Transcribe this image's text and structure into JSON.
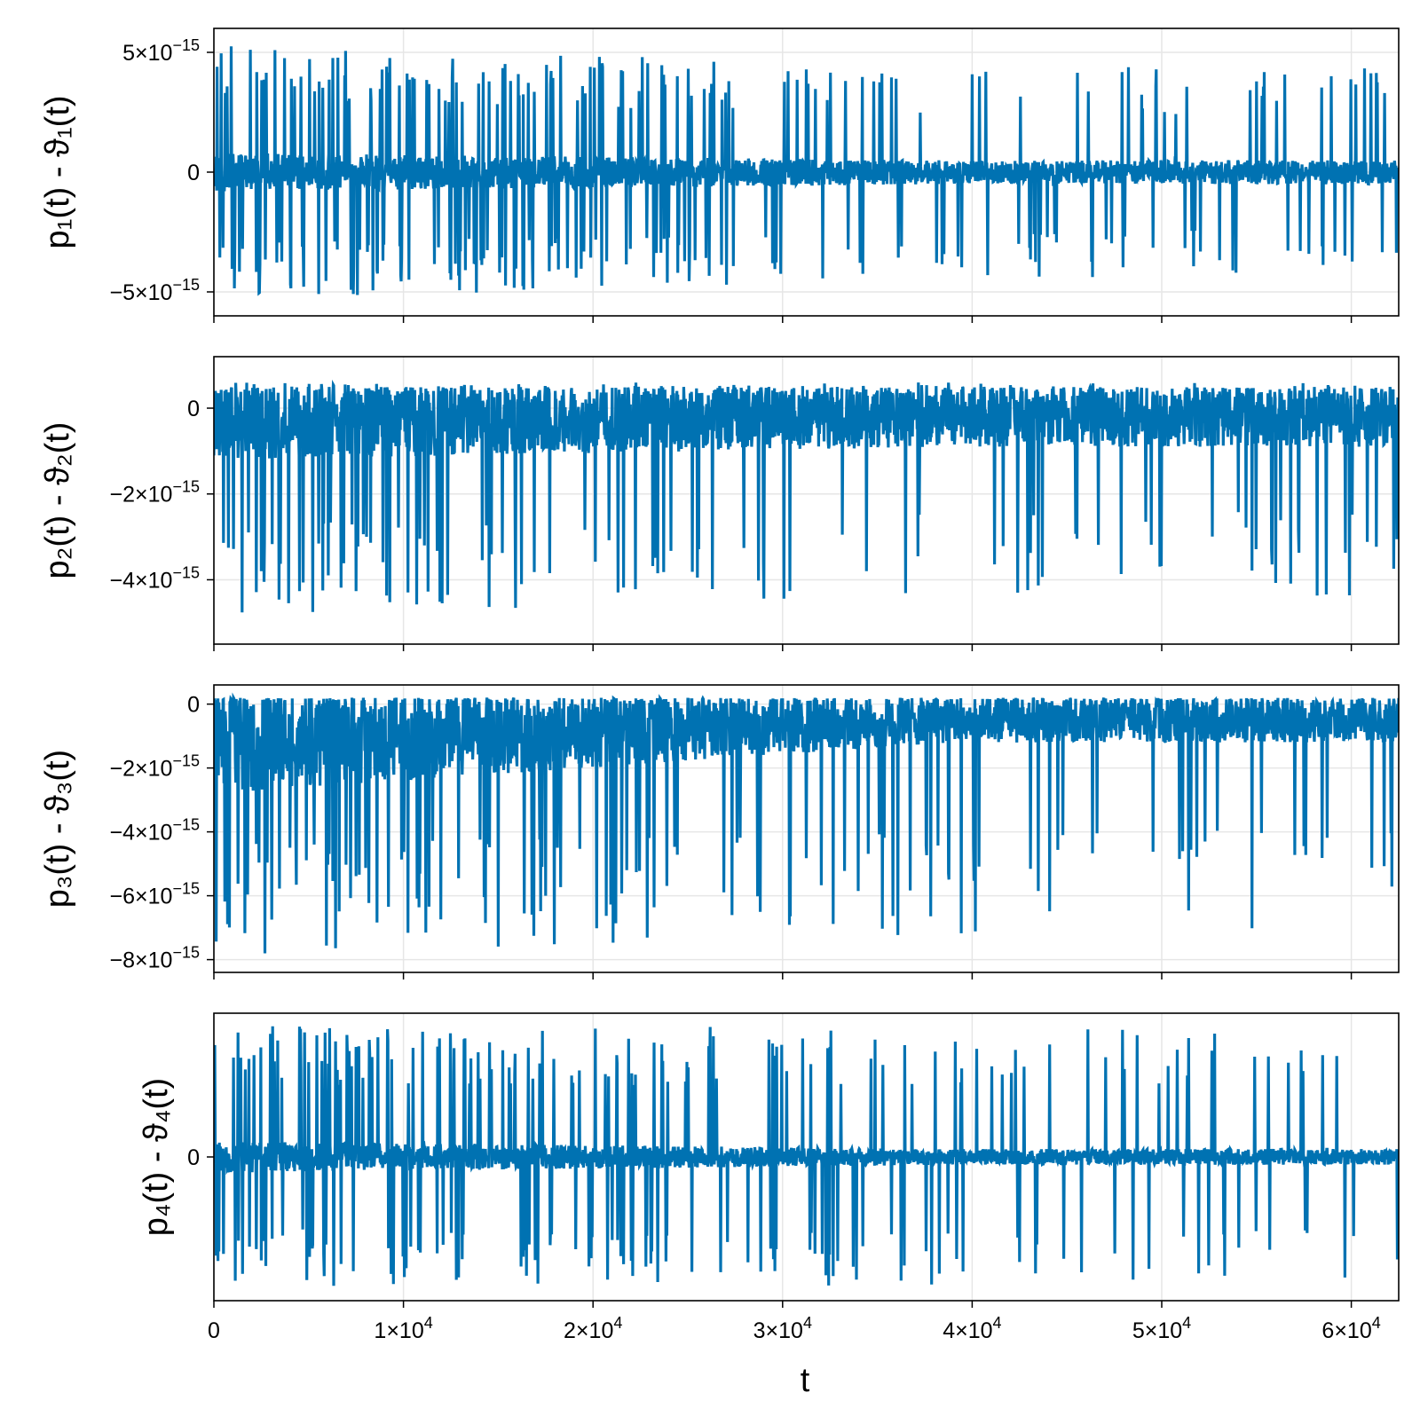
{
  "figure": {
    "line_color": "#0072b2",
    "grid_color": "#e6e6e6",
    "x_axis_label": "t",
    "shared_x_ticks": [
      "0",
      "1×10",
      "2×10",
      "3×10",
      "4×10",
      "5×10",
      "6×10"
    ],
    "x_tick_exponent": "4"
  },
  "chart_data": [
    {
      "type": "line",
      "ylabel": "p₁(t) - ϑ₁(t)",
      "xlim": [
        0,
        62500
      ],
      "ylim": [
        -6e-15,
        6e-15
      ],
      "grid": true,
      "y_ticks": [
        {
          "value": 5e-15,
          "mant": "5×10",
          "exp": "−15"
        },
        {
          "value": 0,
          "mant": "0",
          "exp": ""
        },
        {
          "value": -5e-15,
          "mant": "−5×10",
          "exp": "−15"
        }
      ],
      "envelope": {
        "base_lo": -8e-16,
        "base_hi": 8e-16,
        "late_lo": -5e-16,
        "late_hi": 5e-16,
        "spike_up": 5.4e-15,
        "spike_down": -5.4e-15,
        "late_spike_up": 4.4e-15,
        "late_spike_down": -4.4e-15
      },
      "series": [
        {
          "values_summary": "oscillating error around 0, spikes up to ±5.4×10⁻¹⁵"
        }
      ]
    },
    {
      "type": "line",
      "ylabel": "p₂(t) - ϑ₂(t)",
      "xlim": [
        0,
        62500
      ],
      "ylim": [
        -5.5e-15,
        1.2e-15
      ],
      "grid": true,
      "y_ticks": [
        {
          "value": 0,
          "mant": "0",
          "exp": ""
        },
        {
          "value": -2e-15,
          "mant": "−2×10",
          "exp": "−15"
        },
        {
          "value": -4e-15,
          "mant": "−4×10",
          "exp": "−15"
        }
      ],
      "envelope": {
        "base_lo": -1.2e-15,
        "base_hi": 5e-16,
        "late_lo": -9e-16,
        "late_hi": 5e-16,
        "spike_up": 6e-16,
        "spike_down": -4.9e-15,
        "late_spike_up": 6e-16,
        "late_spike_down": -4.4e-15
      },
      "series": [
        {
          "values_summary": "dense band near 0 with negative spikes to about −5.1×10⁻¹⁵"
        }
      ]
    },
    {
      "type": "line",
      "ylabel": "p₃(t) - ϑ₃(t)",
      "xlim": [
        0,
        62500
      ],
      "ylim": [
        -8.4e-15,
        6e-16
      ],
      "grid": true,
      "y_ticks": [
        {
          "value": 0,
          "mant": "0",
          "exp": ""
        },
        {
          "value": -2e-15,
          "mant": "−2×10",
          "exp": "−15"
        },
        {
          "value": -4e-15,
          "mant": "−4×10",
          "exp": "−15"
        },
        {
          "value": -6e-15,
          "mant": "−6×10",
          "exp": "−15"
        },
        {
          "value": -8e-15,
          "mant": "−8×10",
          "exp": "−15"
        }
      ],
      "envelope": {
        "base_lo": -2.8e-15,
        "base_hi": 2e-16,
        "late_lo": -1.2e-15,
        "late_hi": 2e-16,
        "spike_up": 2e-16,
        "spike_down": -7.9e-15,
        "late_spike_up": 2e-16,
        "late_spike_down": -7.2e-15
      },
      "series": [
        {
          "values_summary": "band just below 0 with negative spikes to about −8×10⁻¹⁵"
        }
      ]
    },
    {
      "type": "line",
      "ylabel": "p₄(t) - ϑ₄(t)",
      "xlim": [
        0,
        62500
      ],
      "ylim": [
        -1.1,
        1.1
      ],
      "grid": true,
      "y_ticks": [
        {
          "value": 0,
          "mant": "0",
          "exp": ""
        }
      ],
      "envelope": {
        "base_lo": -0.12,
        "base_hi": 0.12,
        "late_lo": -0.06,
        "late_hi": 0.06,
        "spike_up": 1.0,
        "spike_down": -1.0,
        "late_spike_up": 1.0,
        "late_spike_down": -1.0
      },
      "series": [
        {
          "values_summary": "oscillation around 0 with symmetric spikes"
        }
      ]
    }
  ]
}
